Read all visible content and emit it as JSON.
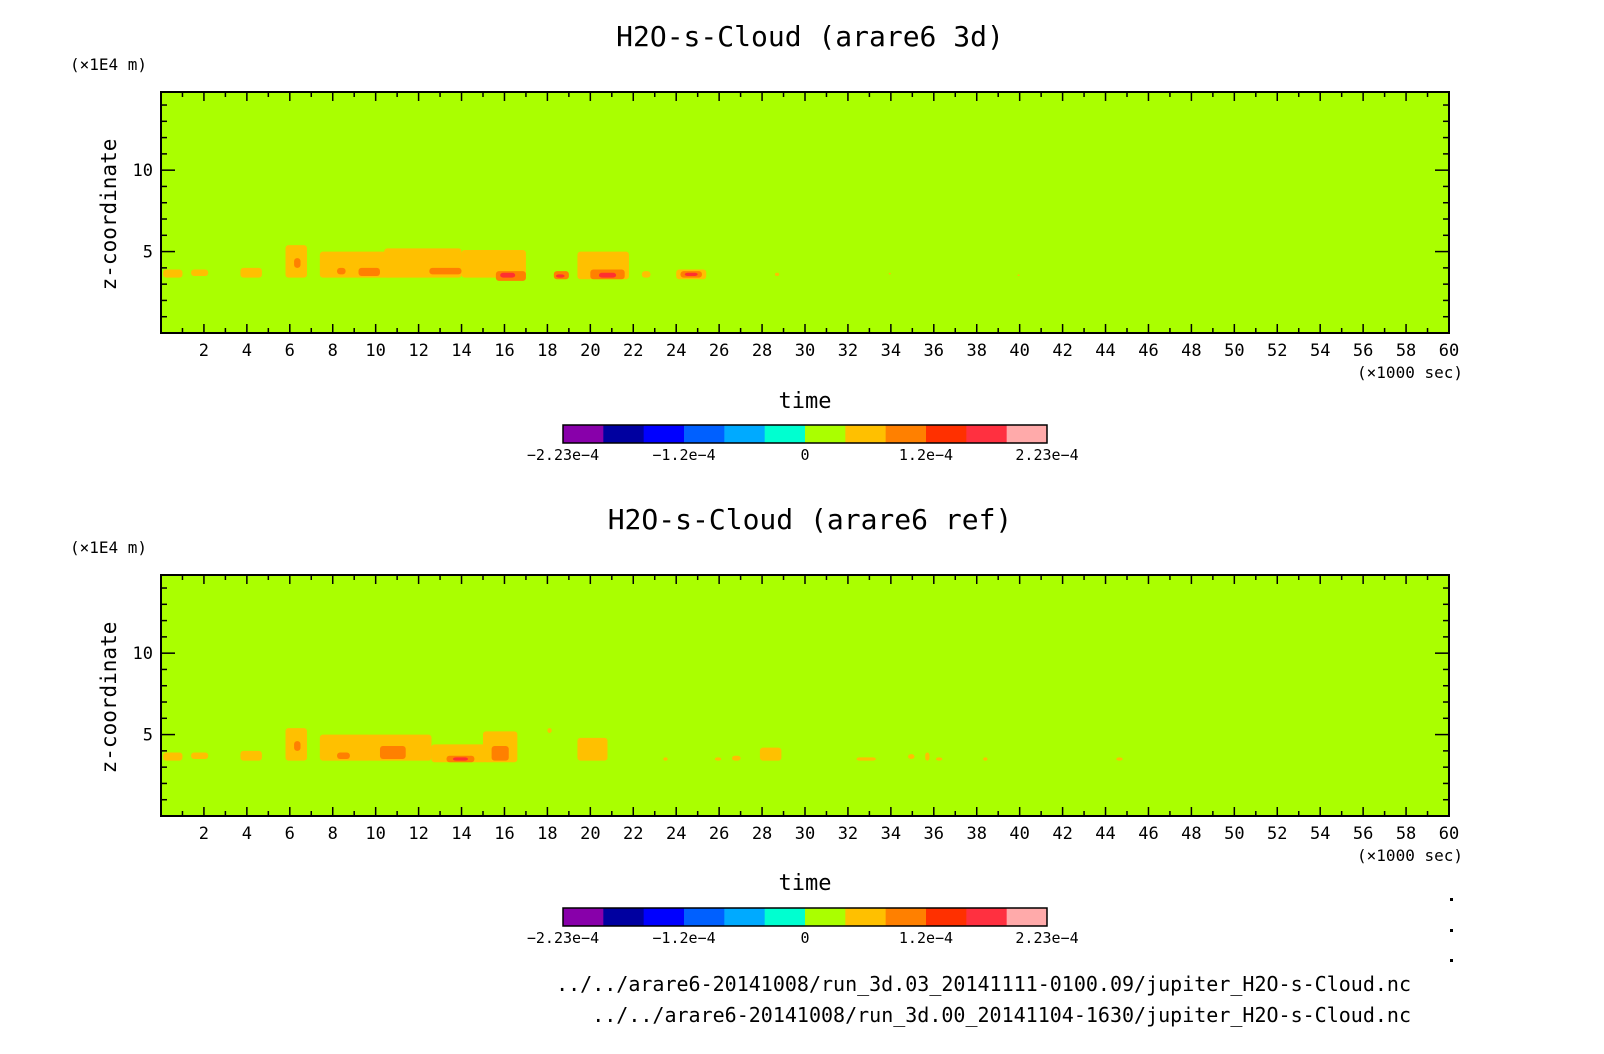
{
  "chart_data": [
    {
      "type": "heatmap",
      "title": "H2O-s-Cloud (arare6 3d)",
      "xlabel": "time",
      "ylabel": "z-coordinate",
      "x_unit": "(×1000 sec)",
      "y_unit": "(×1E4 m)",
      "xlim": [
        0,
        60
      ],
      "ylim": [
        0,
        14.8
      ],
      "xticks": [
        "2",
        "4",
        "6",
        "8",
        "10",
        "12",
        "14",
        "16",
        "18",
        "20",
        "22",
        "24",
        "26",
        "28",
        "30",
        "32",
        "34",
        "36",
        "38",
        "40",
        "42",
        "44",
        "46",
        "48",
        "50",
        "52",
        "54",
        "56",
        "58",
        "60"
      ],
      "yticks": [
        "5",
        "10"
      ],
      "background_color": "#aaff00",
      "regions": [
        {
          "x": [
            0.1,
            1.0
          ],
          "y": [
            3.4,
            3.9
          ],
          "color": "#ffc000"
        },
        {
          "x": [
            1.4,
            2.2
          ],
          "y": [
            3.5,
            3.9
          ],
          "color": "#ffc000"
        },
        {
          "x": [
            3.7,
            4.7
          ],
          "y": [
            3.4,
            4.0
          ],
          "color": "#ffc000"
        },
        {
          "x": [
            5.8,
            6.8
          ],
          "y": [
            3.4,
            5.4
          ],
          "color": "#ffc000"
        },
        {
          "x": [
            6.2,
            6.5
          ],
          "y": [
            4.0,
            4.6
          ],
          "color": "#ff8000"
        },
        {
          "x": [
            7.4,
            10.8
          ],
          "y": [
            3.4,
            5.0
          ],
          "color": "#ffc000"
        },
        {
          "x": [
            8.2,
            8.6
          ],
          "y": [
            3.6,
            4.0
          ],
          "color": "#ff8000"
        },
        {
          "x": [
            9.2,
            10.2
          ],
          "y": [
            3.5,
            4.0
          ],
          "color": "#ff8000"
        },
        {
          "x": [
            10.4,
            14.0
          ],
          "y": [
            3.4,
            5.2
          ],
          "color": "#ffc000"
        },
        {
          "x": [
            12.5,
            14.0
          ],
          "y": [
            3.6,
            4.0
          ],
          "color": "#ff8000"
        },
        {
          "x": [
            14.0,
            17.0
          ],
          "y": [
            3.4,
            5.1
          ],
          "color": "#ffc000"
        },
        {
          "x": [
            15.6,
            17.0
          ],
          "y": [
            3.2,
            3.8
          ],
          "color": "#ff8000"
        },
        {
          "x": [
            15.8,
            16.5
          ],
          "y": [
            3.4,
            3.7
          ],
          "color": "#ff3030"
        },
        {
          "x": [
            18.3,
            19.0
          ],
          "y": [
            3.3,
            3.8
          ],
          "color": "#ff8000"
        },
        {
          "x": [
            18.4,
            18.8
          ],
          "y": [
            3.4,
            3.6
          ],
          "color": "#ff3030"
        },
        {
          "x": [
            19.4,
            21.8
          ],
          "y": [
            3.3,
            5.0
          ],
          "color": "#ffc000"
        },
        {
          "x": [
            20.0,
            21.6
          ],
          "y": [
            3.3,
            3.9
          ],
          "color": "#ff8000"
        },
        {
          "x": [
            20.4,
            21.2
          ],
          "y": [
            3.4,
            3.7
          ],
          "color": "#ff3030"
        },
        {
          "x": [
            22.4,
            22.8
          ],
          "y": [
            3.4,
            3.8
          ],
          "color": "#ffc000"
        },
        {
          "x": [
            24.0,
            25.4
          ],
          "y": [
            3.3,
            3.9
          ],
          "color": "#ffc000"
        },
        {
          "x": [
            24.2,
            25.2
          ],
          "y": [
            3.4,
            3.8
          ],
          "color": "#ff8000"
        },
        {
          "x": [
            24.4,
            25.0
          ],
          "y": [
            3.5,
            3.7
          ],
          "color": "#ff3030"
        },
        {
          "x": [
            28.6,
            28.8
          ],
          "y": [
            3.5,
            3.7
          ],
          "color": "#ffc000"
        },
        {
          "x": [
            33.9,
            34.0
          ],
          "y": [
            3.6,
            3.7
          ],
          "color": "#ffc000"
        },
        {
          "x": [
            39.9,
            40.0
          ],
          "y": [
            3.5,
            3.6
          ],
          "color": "#ffc000"
        }
      ],
      "colorbar": {
        "colors": [
          "#8800aa",
          "#0000a0",
          "#0000ff",
          "#0060ff",
          "#00aaff",
          "#00ffd0",
          "#aaff00",
          "#ffc000",
          "#ff8000",
          "#ff3000",
          "#ff3040",
          "#ffaaaa"
        ],
        "labels": [
          "−2.23e−4",
          "−1.2e−4",
          "0",
          "1.2e−4",
          "2.23e−4"
        ]
      }
    },
    {
      "type": "heatmap",
      "title": "H2O-s-Cloud (arare6 ref)",
      "xlabel": "time",
      "ylabel": "z-coordinate",
      "x_unit": "(×1000 sec)",
      "y_unit": "(×1E4 m)",
      "xlim": [
        0,
        60
      ],
      "ylim": [
        0,
        14.8
      ],
      "xticks": [
        "2",
        "4",
        "6",
        "8",
        "10",
        "12",
        "14",
        "16",
        "18",
        "20",
        "22",
        "24",
        "26",
        "28",
        "30",
        "32",
        "34",
        "36",
        "38",
        "40",
        "42",
        "44",
        "46",
        "48",
        "50",
        "52",
        "54",
        "56",
        "58",
        "60"
      ],
      "yticks": [
        "5",
        "10"
      ],
      "background_color": "#aaff00",
      "regions": [
        {
          "x": [
            0.1,
            1.0
          ],
          "y": [
            3.4,
            3.9
          ],
          "color": "#ffc000"
        },
        {
          "x": [
            1.4,
            2.2
          ],
          "y": [
            3.5,
            3.9
          ],
          "color": "#ffc000"
        },
        {
          "x": [
            3.7,
            4.7
          ],
          "y": [
            3.4,
            4.0
          ],
          "color": "#ffc000"
        },
        {
          "x": [
            5.8,
            6.8
          ],
          "y": [
            3.4,
            5.4
          ],
          "color": "#ffc000"
        },
        {
          "x": [
            6.2,
            6.5
          ],
          "y": [
            4.0,
            4.6
          ],
          "color": "#ff8000"
        },
        {
          "x": [
            7.4,
            9.8
          ],
          "y": [
            3.4,
            5.0
          ],
          "color": "#ffc000"
        },
        {
          "x": [
            8.2,
            8.8
          ],
          "y": [
            3.5,
            3.9
          ],
          "color": "#ff8000"
        },
        {
          "x": [
            9.6,
            12.6
          ],
          "y": [
            3.4,
            5.0
          ],
          "color": "#ffc000"
        },
        {
          "x": [
            10.2,
            11.4
          ],
          "y": [
            3.5,
            4.3
          ],
          "color": "#ff8000"
        },
        {
          "x": [
            12.6,
            15.2
          ],
          "y": [
            3.3,
            4.4
          ],
          "color": "#ffc000"
        },
        {
          "x": [
            13.3,
            14.6
          ],
          "y": [
            3.3,
            3.7
          ],
          "color": "#ff8000"
        },
        {
          "x": [
            13.6,
            14.3
          ],
          "y": [
            3.4,
            3.6
          ],
          "color": "#ff3030"
        },
        {
          "x": [
            15.0,
            16.6
          ],
          "y": [
            3.3,
            5.2
          ],
          "color": "#ffc000"
        },
        {
          "x": [
            15.4,
            16.2
          ],
          "y": [
            3.4,
            4.3
          ],
          "color": "#ff8000"
        },
        {
          "x": [
            18.0,
            18.2
          ],
          "y": [
            5.1,
            5.4
          ],
          "color": "#ffc000"
        },
        {
          "x": [
            19.4,
            20.8
          ],
          "y": [
            3.4,
            4.8
          ],
          "color": "#ffc000"
        },
        {
          "x": [
            23.4,
            23.6
          ],
          "y": [
            3.4,
            3.6
          ],
          "color": "#ffc000"
        },
        {
          "x": [
            25.8,
            26.1
          ],
          "y": [
            3.4,
            3.6
          ],
          "color": "#ffc000"
        },
        {
          "x": [
            26.6,
            27.0
          ],
          "y": [
            3.4,
            3.7
          ],
          "color": "#ffc000"
        },
        {
          "x": [
            27.9,
            28.9
          ],
          "y": [
            3.4,
            4.2
          ],
          "color": "#ffc000"
        },
        {
          "x": [
            32.4,
            33.3
          ],
          "y": [
            3.4,
            3.6
          ],
          "color": "#ffc000"
        },
        {
          "x": [
            34.8,
            35.1
          ],
          "y": [
            3.5,
            3.8
          ],
          "color": "#ffc000"
        },
        {
          "x": [
            35.6,
            35.8
          ],
          "y": [
            3.4,
            3.9
          ],
          "color": "#ffc000"
        },
        {
          "x": [
            36.1,
            36.4
          ],
          "y": [
            3.4,
            3.6
          ],
          "color": "#ffc000"
        },
        {
          "x": [
            38.3,
            38.5
          ],
          "y": [
            3.4,
            3.6
          ],
          "color": "#ffc000"
        },
        {
          "x": [
            44.5,
            44.8
          ],
          "y": [
            3.4,
            3.6
          ],
          "color": "#ffc000"
        }
      ],
      "colorbar": {
        "colors": [
          "#8800aa",
          "#0000a0",
          "#0000ff",
          "#0060ff",
          "#00aaff",
          "#00ffd0",
          "#aaff00",
          "#ffc000",
          "#ff8000",
          "#ff3000",
          "#ff3040",
          "#ffaaaa"
        ],
        "labels": [
          "−2.23e−4",
          "−1.2e−4",
          "0",
          "1.2e−4",
          "2.23e−4"
        ]
      }
    }
  ],
  "files": {
    "line1": "../../arare6-20141008/run_3d.03_20141111-0100.09/jupiter_H2O-s-Cloud.nc",
    "line2": "../../arare6-20141008/run_3d.00_20141104-1630/jupiter_H2O-s-Cloud.nc"
  }
}
